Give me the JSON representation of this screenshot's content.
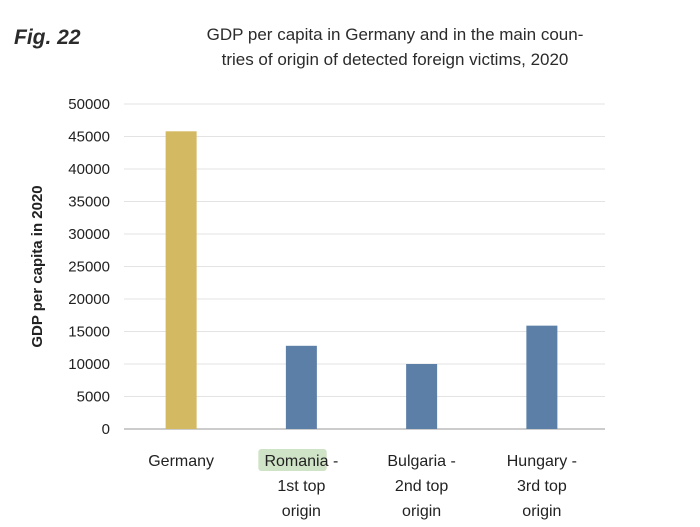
{
  "figure_label": "Fig. 22",
  "chart_data": {
    "type": "bar",
    "title": "GDP per capita in Germany and in the main coun-tries of origin of detected foreign victims, 2020",
    "title_lines": [
      "GDP per capita in Germany and in the main coun-",
      "tries of origin of detected foreign victims, 2020"
    ],
    "xlabel": "",
    "ylabel": "GDP per capita in 2020",
    "ylim": [
      0,
      50000
    ],
    "yticks": [
      0,
      5000,
      10000,
      15000,
      20000,
      25000,
      30000,
      35000,
      40000,
      45000,
      50000
    ],
    "grid": true,
    "categories": [
      "Germany",
      "Romania - 1st top origin",
      "Bulgaria - 2nd top origin",
      "Hungary - 3rd top origin"
    ],
    "category_lines": [
      [
        "Germany"
      ],
      [
        "Romania -",
        "1st top",
        "origin"
      ],
      [
        "Bulgaria -",
        "2nd top",
        "origin"
      ],
      [
        "Hungary -",
        "3rd top",
        "origin"
      ]
    ],
    "values": [
      45800,
      12800,
      10000,
      15900
    ],
    "colors": [
      "#d4b963",
      "#5b7fa6",
      "#5b7fa6",
      "#5b7fa6"
    ],
    "highlight": {
      "text": "Romania",
      "color": "#cfe3c6"
    }
  }
}
